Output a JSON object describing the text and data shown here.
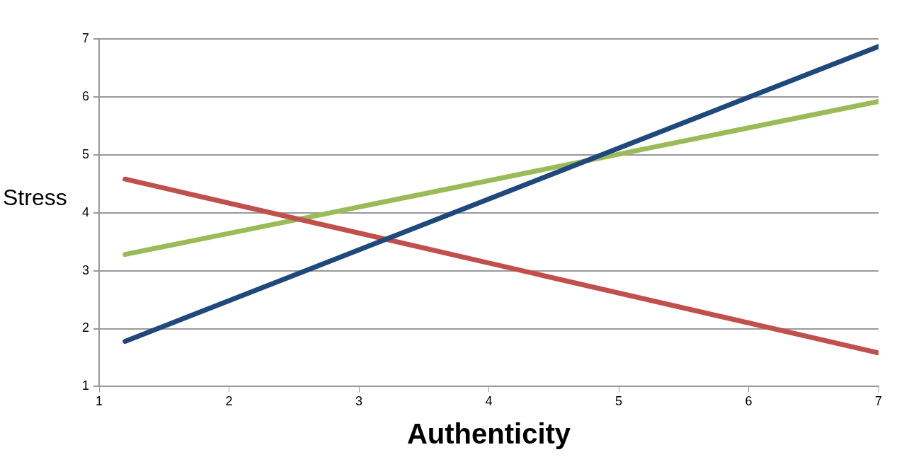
{
  "chart_data": {
    "type": "line",
    "xlabel": "Authenticity",
    "ylabel": "Stress",
    "x": [
      1.2,
      7
    ],
    "xlim": [
      1,
      7
    ],
    "xticks": [
      1,
      2,
      3,
      4,
      5,
      6,
      7
    ],
    "ylim": [
      1,
      7
    ],
    "yticks": [
      1,
      2,
      3,
      4,
      5,
      6,
      7
    ],
    "grid": "y",
    "legend": false,
    "marker": "none",
    "line_style": "solid",
    "series": [
      {
        "color": "#1f497d",
        "values": [
          1.78,
          6.87
        ]
      },
      {
        "color": "#c0504d",
        "values": [
          4.58,
          1.58
        ]
      },
      {
        "color": "#9bbb59",
        "values": [
          3.28,
          5.92
        ]
      }
    ]
  }
}
